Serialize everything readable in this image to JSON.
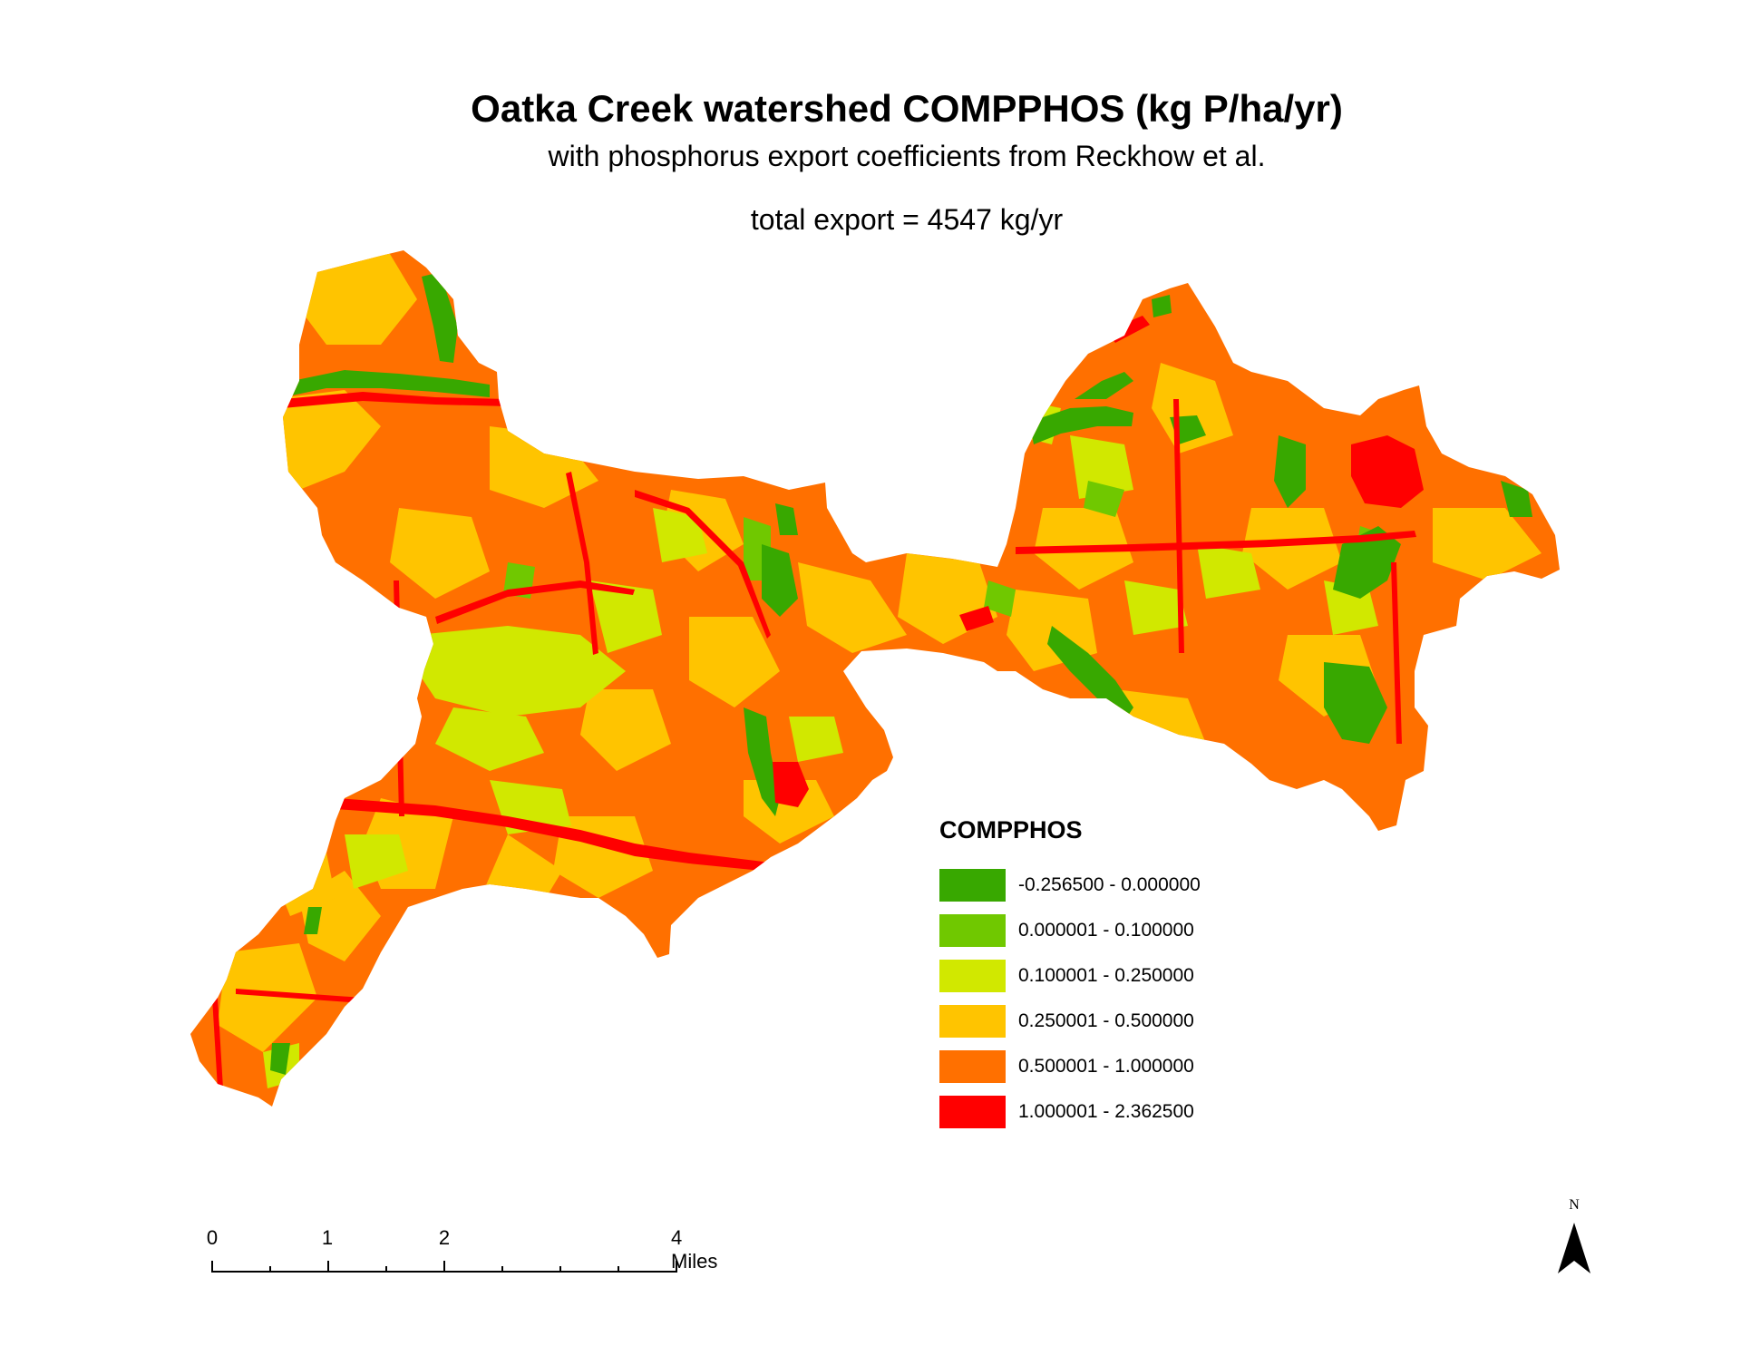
{
  "map": {
    "title": "Oatka Creek watershed COMPPHOS (kg P/ha/yr)",
    "subtitle": "with phosphorus export coefficients from Reckhow et al.",
    "total_export": "total export = 4547 kg/yr"
  },
  "legend": {
    "title": "COMPPHOS",
    "classes": [
      {
        "label": "-0.256500 - 0.000000",
        "color": "#38a800"
      },
      {
        "label": "0.000001 - 0.100000",
        "color": "#70c800"
      },
      {
        "label": "0.100001 - 0.250000",
        "color": "#d1e800"
      },
      {
        "label": "0.250001 - 0.500000",
        "color": "#ffc400"
      },
      {
        "label": "0.500001 - 1.000000",
        "color": "#ff7000"
      },
      {
        "label": "1.000001 - 2.362500",
        "color": "#ff0000"
      }
    ]
  },
  "scale_bar": {
    "ticks": [
      "0",
      "1",
      "2"
    ],
    "end_label": "4 Miles"
  },
  "north_arrow": {
    "letter": "N"
  }
}
